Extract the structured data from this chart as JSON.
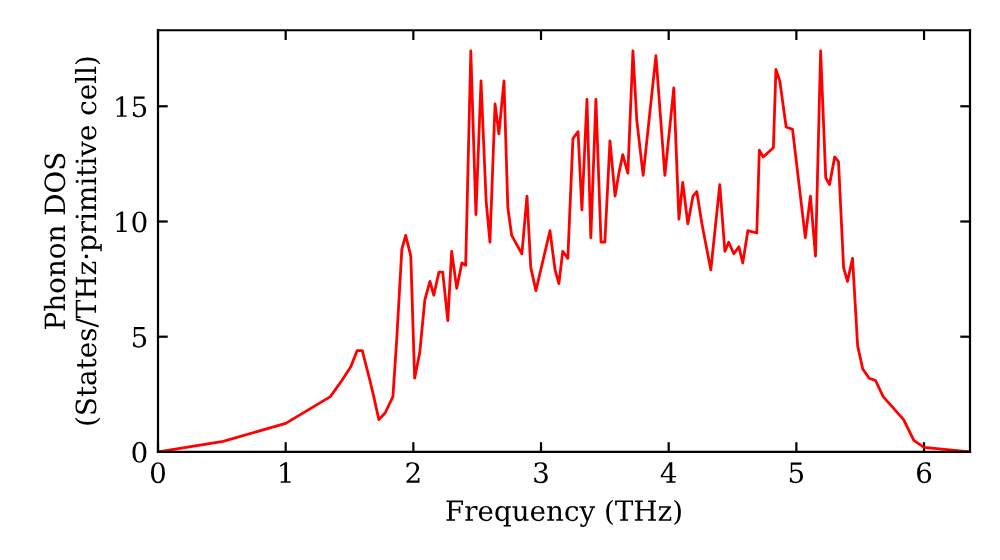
{
  "chart_data": {
    "type": "line",
    "xlabel": "Frequency (THz)",
    "ylabel": "Phonon DOS\n(States/THz·primitive cell)",
    "xlim": [
      0,
      6.36
    ],
    "ylim": [
      0,
      18.3
    ],
    "xticks": [
      0,
      1,
      2,
      3,
      4,
      5,
      6
    ],
    "yticks": [
      0,
      5,
      10,
      15
    ],
    "grid": false,
    "legend": false,
    "series": [
      {
        "color": "#ff0000",
        "x": [
          0,
          0.51,
          1.0,
          1.35,
          1.44,
          1.51,
          1.56,
          1.6,
          1.66,
          1.69,
          1.73,
          1.78,
          1.84,
          1.87,
          1.91,
          1.94,
          1.98,
          2.01,
          2.05,
          2.09,
          2.13,
          2.16,
          2.2,
          2.23,
          2.27,
          2.3,
          2.34,
          2.38,
          2.41,
          2.45,
          2.49,
          2.53,
          2.57,
          2.6,
          2.64,
          2.67,
          2.71,
          2.74,
          2.77,
          2.85,
          2.89,
          2.92,
          2.96,
          3.07,
          3.11,
          3.14,
          3.17,
          3.21,
          3.25,
          3.29,
          3.32,
          3.36,
          3.39,
          3.43,
          3.47,
          3.5,
          3.54,
          3.58,
          3.61,
          3.64,
          3.68,
          3.72,
          3.75,
          3.8,
          3.9,
          3.97,
          4.04,
          4.08,
          4.11,
          4.15,
          4.19,
          4.22,
          4.26,
          4.33,
          4.4,
          4.44,
          4.47,
          4.51,
          4.55,
          4.58,
          4.62,
          4.69,
          4.71,
          4.74,
          4.82,
          4.84,
          4.87,
          4.92,
          4.97,
          5.07,
          5.11,
          5.15,
          5.19,
          5.23,
          5.26,
          5.3,
          5.33,
          5.37,
          5.4,
          5.44,
          5.48,
          5.52,
          5.57,
          5.62,
          5.68,
          5.84,
          5.92,
          6.0,
          6.36
        ],
        "values": [
          0,
          0.46,
          1.24,
          2.4,
          3.1,
          3.7,
          4.4,
          4.4,
          3.1,
          2.4,
          1.4,
          1.7,
          2.4,
          4.9,
          8.8,
          9.4,
          8.5,
          3.2,
          4.3,
          6.6,
          7.4,
          6.8,
          7.8,
          7.8,
          5.7,
          8.7,
          7.1,
          8.2,
          8.1,
          17.4,
          10.3,
          16.1,
          10.9,
          9.1,
          15.1,
          13.8,
          16.1,
          10.6,
          9.4,
          8.6,
          11.1,
          8.0,
          7.0,
          9.6,
          7.9,
          7.3,
          8.7,
          8.4,
          13.6,
          13.9,
          10.5,
          15.3,
          9.3,
          15.3,
          9.1,
          9.1,
          13.5,
          11.1,
          12.1,
          12.9,
          12.1,
          17.4,
          14.4,
          12.0,
          17.2,
          12.0,
          15.8,
          10.1,
          11.7,
          9.9,
          11.1,
          11.3,
          9.9,
          7.9,
          11.6,
          8.7,
          9.1,
          8.6,
          8.9,
          8.2,
          9.6,
          9.5,
          13.1,
          12.8,
          13.2,
          16.6,
          16.1,
          14.1,
          14.0,
          9.3,
          11.1,
          8.5,
          17.4,
          11.9,
          11.6,
          12.8,
          12.6,
          8.0,
          7.4,
          8.4,
          4.6,
          3.6,
          3.2,
          3.1,
          2.4,
          1.4,
          0.5,
          0.2,
          0
        ]
      }
    ]
  }
}
